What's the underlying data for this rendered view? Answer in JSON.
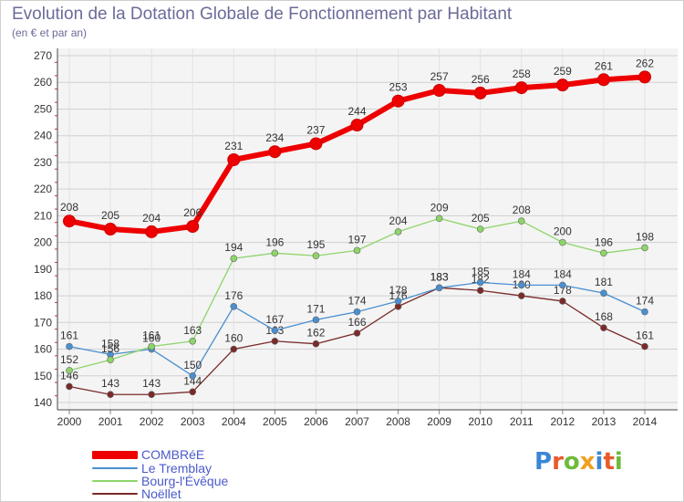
{
  "title": "Evolution de la Dotation Globale de Fonctionnement par Habitant",
  "subtitle": "(en € et par an)",
  "logo": {
    "text": "Proxiti",
    "colors": [
      "#3a86d6",
      "#e85a2a",
      "#6dbb3a",
      "#f0a020",
      "#3a86d6",
      "#e85a2a",
      "#6dbb3a"
    ]
  },
  "chart_data": {
    "type": "line",
    "title": "Evolution de la Dotation Globale de Fonctionnement par Habitant",
    "ylabel": "(en € et par an)",
    "xlabel": "",
    "x": [
      "2000",
      "2001",
      "2002",
      "2003",
      "2004",
      "2005",
      "2006",
      "2007",
      "2008",
      "2009",
      "2010",
      "2011",
      "2012",
      "2013",
      "2014"
    ],
    "ylim": [
      140,
      270
    ],
    "yticks": [
      140,
      150,
      160,
      170,
      180,
      190,
      200,
      210,
      220,
      230,
      240,
      250,
      260,
      270
    ],
    "grid": true,
    "legend_position": "bottom-left",
    "series": [
      {
        "name": "COMBRéE",
        "color": "#ee0000",
        "values": [
          208,
          205,
          204,
          206,
          231,
          234,
          237,
          244,
          253,
          257,
          256,
          258,
          259,
          261,
          262
        ]
      },
      {
        "name": "Le Tremblay",
        "color": "#4a8fd0",
        "values": [
          161,
          158,
          160,
          150,
          176,
          167,
          171,
          174,
          178,
          183,
          185,
          184,
          184,
          181,
          174
        ]
      },
      {
        "name": "Bourg-l'Évêque",
        "color": "#8ed46a",
        "values": [
          152,
          156,
          161,
          163,
          194,
          196,
          195,
          197,
          204,
          209,
          205,
          208,
          200,
          196,
          198
        ]
      },
      {
        "name": "Noëllet",
        "color": "#7a2a2a",
        "values": [
          146,
          143,
          143,
          144,
          160,
          163,
          162,
          166,
          176,
          183,
          182,
          180,
          178,
          168,
          161
        ]
      }
    ]
  }
}
